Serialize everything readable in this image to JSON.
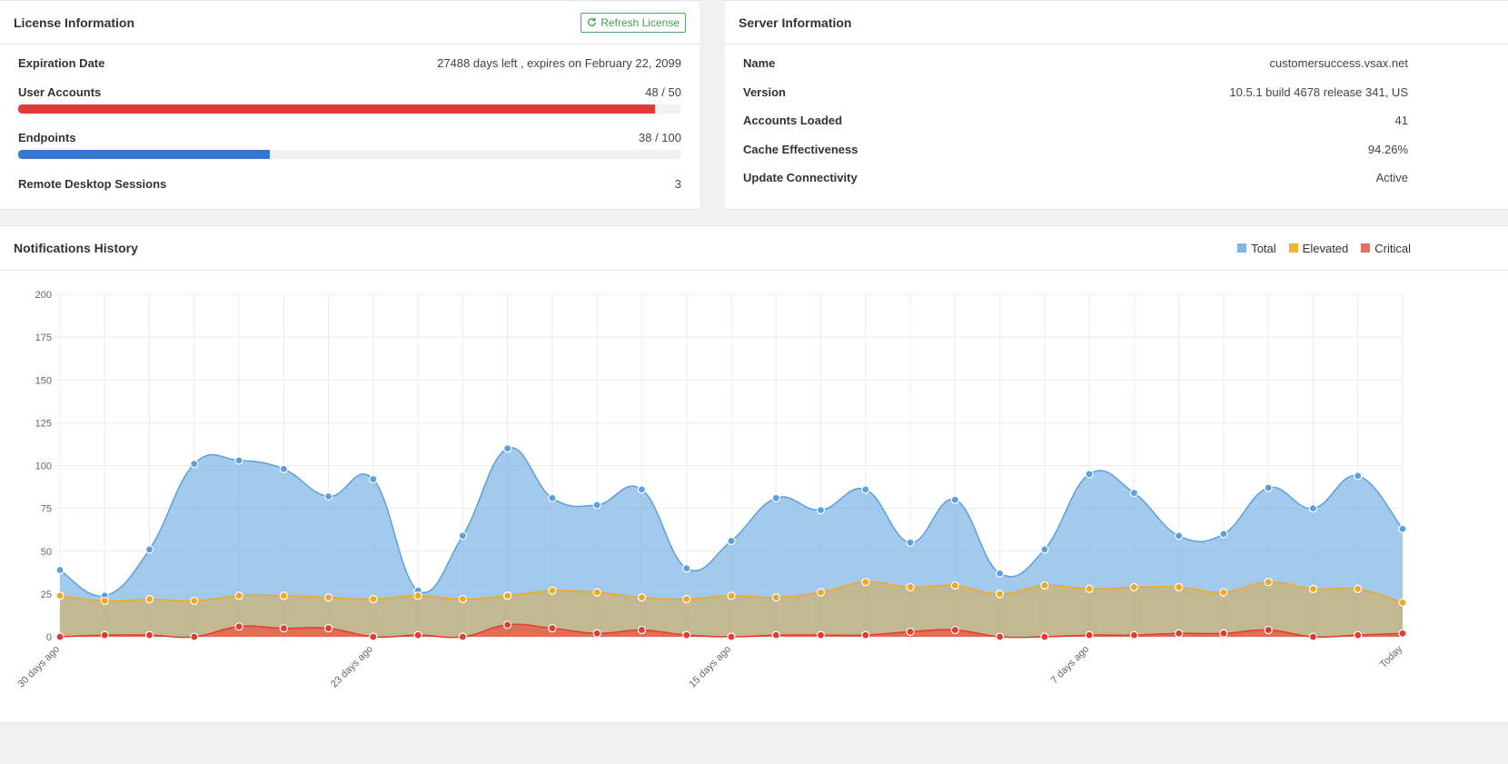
{
  "license": {
    "title": "License Information",
    "refresh_label": "Refresh License",
    "expiration_label": "Expiration Date",
    "expiration_value": "27488 days left , expires on February 22, 2099",
    "user_accounts_label": "User Accounts",
    "user_accounts_value": "48 / 50",
    "user_accounts_fraction": 0.96,
    "endpoints_label": "Endpoints",
    "endpoints_value": "38 / 100",
    "endpoints_fraction": 0.38,
    "rds_label": "Remote Desktop Sessions",
    "rds_value": "3",
    "colors": {
      "user_bar": "#e03a3a",
      "endpoint_bar": "#3478d4"
    }
  },
  "server": {
    "title": "Server Information",
    "rows": [
      {
        "label": "Name",
        "value": "customersuccess.vsax.net"
      },
      {
        "label": "Version",
        "value": "10.5.1 build 4678 release 341, US"
      },
      {
        "label": "Accounts Loaded",
        "value": "41"
      },
      {
        "label": "Cache Effectiveness",
        "value": "94.26%"
      },
      {
        "label": "Update Connectivity",
        "value": "Active"
      }
    ]
  },
  "notifications": {
    "title": "Notifications History",
    "legend": [
      {
        "name": "Total",
        "color": "#7eb6e6"
      },
      {
        "name": "Elevated",
        "color": "#f0b535"
      },
      {
        "name": "Critical",
        "color": "#e2735f"
      }
    ]
  },
  "chart_data": {
    "type": "area",
    "title": "",
    "xlabel": "",
    "ylabel": "",
    "ylim": [
      0,
      200
    ],
    "yticks": [
      0,
      25,
      50,
      75,
      100,
      125,
      150,
      175,
      200
    ],
    "grid": true,
    "legend_position": "top-right",
    "x_tick_labels": [
      {
        "index": 0,
        "label": "30 days ago"
      },
      {
        "index": 7,
        "label": "23 days ago"
      },
      {
        "index": 15,
        "label": "15 days ago"
      },
      {
        "index": 23,
        "label": "7 days ago"
      },
      {
        "index": 30,
        "label": "Today"
      }
    ],
    "series": [
      {
        "name": "Total",
        "color": "#5b9fde",
        "fill": "rgba(124,180,230,0.7)",
        "values": [
          39,
          24,
          51,
          101,
          103,
          98,
          82,
          92,
          27,
          59,
          110,
          81,
          77,
          86,
          40,
          56,
          81,
          74,
          86,
          55,
          80,
          37,
          51,
          95,
          84,
          59,
          60,
          87,
          75,
          94,
          63
        ]
      },
      {
        "name": "Elevated",
        "color": "#f0a824",
        "fill": "rgba(220,170,70,0.55)",
        "values": [
          24,
          21,
          22,
          21,
          24,
          24,
          23,
          22,
          24,
          22,
          24,
          27,
          26,
          23,
          22,
          24,
          23,
          26,
          32,
          29,
          30,
          25,
          30,
          28,
          29,
          29,
          26,
          32,
          28,
          28,
          20
        ]
      },
      {
        "name": "Critical",
        "color": "#e03c32",
        "fill": "rgba(226,100,70,0.85)",
        "values": [
          0,
          1,
          1,
          0,
          6,
          5,
          5,
          0,
          1,
          0,
          7,
          5,
          2,
          4,
          1,
          0,
          1,
          1,
          1,
          3,
          4,
          0,
          0,
          1,
          1,
          2,
          2,
          4,
          0,
          1,
          2
        ]
      }
    ]
  }
}
